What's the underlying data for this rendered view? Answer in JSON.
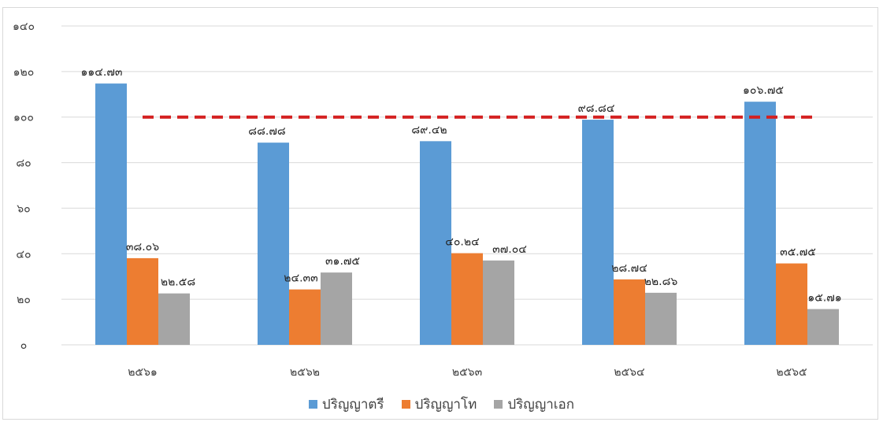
{
  "chart_data": {
    "type": "bar",
    "categories": [
      "๒๕๖๑",
      "๒๕๖๒",
      "๒๕๖๓",
      "๒๕๖๔",
      "๒๕๖๕"
    ],
    "series": [
      {
        "name": "ปริญญาตรี",
        "color": "#5b9bd5",
        "values": [
          114.73,
          88.78,
          89.42,
          98.84,
          106.75
        ],
        "labels": [
          "๑๑๔.๗๓",
          "๘๘.๗๘",
          "๘๙.๔๒",
          "๙๘.๘๔",
          "๑๐๖.๗๕"
        ]
      },
      {
        "name": "ปริญญาโท",
        "color": "#ed7d31",
        "values": [
          38.06,
          24.33,
          40.24,
          28.74,
          35.75
        ],
        "labels": [
          "๓๘.๐๖",
          "๒๔.๓๓",
          "๔๐.๒๔",
          "๒๘.๗๔",
          "๓๕.๗๕"
        ]
      },
      {
        "name": "ปริญญาเอก",
        "color": "#a5a5a5",
        "values": [
          22.58,
          31.75,
          37.04,
          22.86,
          15.71
        ],
        "labels": [
          "๒๒.๕๘",
          "๓๑.๗๕",
          "๓๗.๐๔",
          "๒๒.๘๖",
          "๑๕.๗๑"
        ]
      }
    ],
    "reference_line": {
      "value": 100,
      "color": "#d42020",
      "style": "dashed"
    },
    "yticks": [
      0,
      20,
      40,
      60,
      80,
      100,
      120,
      140
    ],
    "ytick_labels": [
      "๐",
      "๒๐",
      "๔๐",
      "๖๐",
      "๘๐",
      "๑๐๐",
      "๑๒๐",
      "๑๔๐"
    ],
    "ylim": [
      0,
      140
    ],
    "grid": true,
    "legend_position": "bottom"
  }
}
